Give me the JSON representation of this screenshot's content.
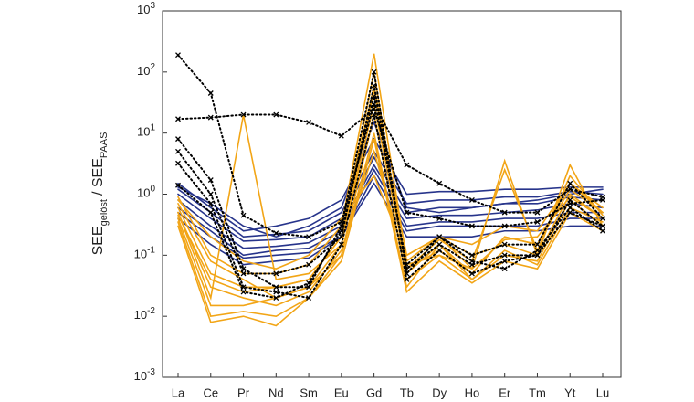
{
  "chart_data": {
    "type": "line",
    "log_scale_y": true,
    "ylabel": [
      "SEE",
      "gelöst",
      "/ SEE",
      "PAAS"
    ],
    "categories": [
      "La",
      "Ce",
      "Pr",
      "Nd",
      "Sm",
      "Eu",
      "Gd",
      "Tb",
      "Dy",
      "Ho",
      "Er",
      "Tm",
      "Yt",
      "Lu"
    ],
    "ylim": [
      0.001,
      1000
    ],
    "yticks": [
      {
        "value": 0.001,
        "label": "10^-3"
      },
      {
        "value": 0.01,
        "label": "10^-2"
      },
      {
        "value": 0.1,
        "label": "10^-1"
      },
      {
        "value": 1,
        "label": "10^0"
      },
      {
        "value": 10,
        "label": "10^1"
      },
      {
        "value": 100,
        "label": "10^2"
      },
      {
        "value": 1000,
        "label": "10^3"
      }
    ],
    "series": [
      {
        "color": "#27348b",
        "style": "solid",
        "values": [
          1.5,
          0.6,
          0.25,
          0.3,
          0.4,
          0.8,
          8,
          1,
          1.1,
          1.1,
          1.2,
          1.2,
          1.3,
          1.3
        ]
      },
      {
        "color": "#27348b",
        "style": "solid",
        "values": [
          1.2,
          0.5,
          0.2,
          0.22,
          0.25,
          0.5,
          5,
          0.7,
          0.8,
          0.8,
          0.9,
          0.9,
          1.1,
          1.0
        ]
      },
      {
        "color": "#27348b",
        "style": "solid",
        "values": [
          1.0,
          0.4,
          0.17,
          0.18,
          0.2,
          0.4,
          4,
          0.5,
          0.6,
          0.6,
          0.7,
          0.7,
          0.9,
          0.8
        ]
      },
      {
        "color": "#27348b",
        "style": "solid",
        "values": [
          0.8,
          0.3,
          0.13,
          0.14,
          0.16,
          0.3,
          3,
          0.4,
          0.45,
          0.45,
          0.5,
          0.55,
          0.7,
          0.6
        ]
      },
      {
        "color": "#27348b",
        "style": "solid",
        "values": [
          0.6,
          0.25,
          0.1,
          0.12,
          0.13,
          0.25,
          2.5,
          0.3,
          0.35,
          0.35,
          0.4,
          0.4,
          0.5,
          0.5
        ]
      },
      {
        "color": "#27348b",
        "style": "solid",
        "values": [
          0.5,
          0.2,
          0.09,
          0.1,
          0.11,
          0.2,
          2,
          0.25,
          0.3,
          0.3,
          0.3,
          0.3,
          0.4,
          0.4
        ]
      },
      {
        "color": "#27348b",
        "style": "solid",
        "values": [
          0.4,
          0.15,
          0.07,
          0.08,
          0.09,
          0.2,
          1.5,
          0.2,
          0.2,
          0.2,
          0.25,
          0.25,
          0.3,
          0.3
        ]
      },
      {
        "color": "#27348b",
        "style": "solid",
        "values": [
          1.3,
          0.7,
          0.3,
          0.2,
          0.3,
          0.6,
          15,
          0.6,
          0.5,
          0.6,
          0.7,
          0.8,
          1.0,
          1.2
        ]
      },
      {
        "color": "#f2a516",
        "style": "solid",
        "values": [
          0.9,
          0.1,
          0.05,
          0.05,
          0.07,
          0.3,
          200,
          0.08,
          0.2,
          0.06,
          3.5,
          0.1,
          3,
          0.3
        ]
      },
      {
        "color": "#f2a516",
        "style": "solid",
        "values": [
          0.6,
          0.05,
          0.03,
          0.03,
          0.04,
          0.2,
          100,
          0.05,
          0.15,
          0.05,
          0.2,
          0.15,
          1.5,
          0.5
        ]
      },
      {
        "color": "#f2a516",
        "style": "solid",
        "values": [
          0.5,
          0.02,
          20,
          0.04,
          0.05,
          0.15,
          50,
          0.1,
          0.2,
          0.1,
          0.15,
          0.1,
          1,
          0.4
        ]
      },
      {
        "color": "#f2a516",
        "style": "solid",
        "values": [
          0.4,
          0.015,
          0.015,
          0.02,
          0.03,
          0.1,
          20,
          0.04,
          0.1,
          0.04,
          0.1,
          0.08,
          0.8,
          0.3
        ]
      },
      {
        "color": "#f2a516",
        "style": "solid",
        "values": [
          0.3,
          0.008,
          0.01,
          0.007,
          0.02,
          0.1,
          10,
          0.03,
          0.15,
          0.04,
          0.12,
          0.07,
          0.6,
          0.35
        ]
      },
      {
        "color": "#f2a516",
        "style": "solid",
        "values": [
          0.7,
          0.08,
          0.04,
          0.02,
          0.03,
          0.15,
          30,
          0.06,
          0.12,
          0.05,
          0.2,
          0.15,
          1.2,
          0.5
        ]
      },
      {
        "color": "#f2a516",
        "style": "solid",
        "values": [
          0.5,
          0.03,
          0.02,
          0.015,
          0.025,
          0.12,
          5,
          0.07,
          0.1,
          0.06,
          0.18,
          0.2,
          0.9,
          0.4
        ]
      },
      {
        "color": "#f2a516",
        "style": "solid",
        "values": [
          0.8,
          0.2,
          0.08,
          0.06,
          0.1,
          0.4,
          2,
          0.1,
          0.2,
          0.15,
          0.3,
          0.25,
          1.5,
          0.6
        ]
      },
      {
        "color": "#f2a516",
        "style": "solid",
        "values": [
          0.35,
          0.01,
          0.012,
          0.01,
          0.02,
          0.08,
          8,
          0.025,
          0.08,
          0.035,
          0.08,
          0.06,
          0.5,
          0.25
        ]
      },
      {
        "color": "#f2a516",
        "style": "solid",
        "values": [
          0.45,
          0.04,
          0.025,
          0.03,
          0.04,
          0.2,
          60,
          0.06,
          0.18,
          0.08,
          2.5,
          0.12,
          2,
          0.45
        ]
      },
      {
        "color": "#000000",
        "style": "dotted",
        "marker": "x",
        "values": [
          190,
          45,
          0.45,
          0.23,
          0.2,
          0.35,
          30,
          3,
          1.5,
          0.8,
          0.5,
          0.5,
          1.2,
          0.9
        ]
      },
      {
        "color": "#000000",
        "style": "dotted",
        "marker": "x",
        "values": [
          17,
          18,
          20,
          20,
          15,
          9,
          25,
          0.5,
          0.4,
          0.3,
          0.3,
          0.35,
          0.7,
          0.8
        ]
      },
      {
        "color": "#000000",
        "style": "dotted",
        "marker": "x",
        "values": [
          8,
          1.7,
          0.06,
          0.03,
          0.03,
          0.3,
          100,
          0.05,
          0.2,
          0.1,
          0.15,
          0.15,
          1.5,
          0.4
        ]
      },
      {
        "color": "#000000",
        "style": "dotted",
        "marker": "x",
        "values": [
          5,
          1,
          0.05,
          0.05,
          0.07,
          0.2,
          60,
          0.06,
          0.15,
          0.07,
          0.1,
          0.1,
          0.8,
          0.3
        ]
      },
      {
        "color": "#000000",
        "style": "dotted",
        "marker": "x",
        "values": [
          3.2,
          0.7,
          0.03,
          0.025,
          0.02,
          0.15,
          20,
          0.04,
          0.12,
          0.05,
          0.08,
          0.1,
          0.5,
          0.3
        ]
      },
      {
        "color": "#000000",
        "style": "dotted",
        "marker": "x",
        "values": [
          1.4,
          0.5,
          0.025,
          0.02,
          0.035,
          0.25,
          40,
          0.07,
          0.2,
          0.08,
          0.06,
          0.12,
          0.6,
          0.25
        ]
      }
    ]
  }
}
